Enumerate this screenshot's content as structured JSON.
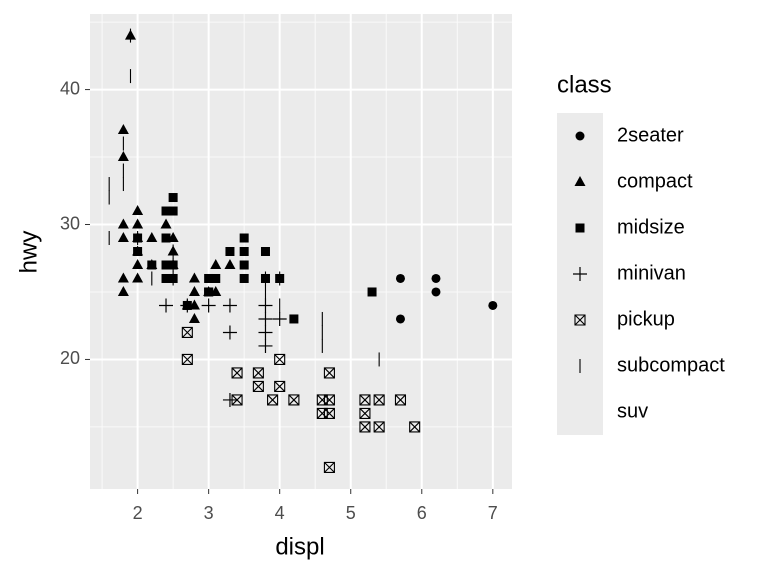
{
  "chart_data": {
    "type": "scatter",
    "x_label": "displ",
    "y_label": "hwy",
    "legend_title": "class",
    "xlim": [
      1.33,
      7.27
    ],
    "ylim": [
      10.4,
      45.6
    ],
    "xticks": [
      2,
      3,
      4,
      5,
      6,
      7
    ],
    "yticks": [
      20,
      30,
      40
    ],
    "grid": true,
    "legend": "right",
    "series": [
      {
        "name": "2seater",
        "shape": "circle",
        "color": "#000000",
        "x": [
          5.7,
          5.7,
          6.2,
          6.2,
          7.0
        ],
        "values": [
          26,
          23,
          26,
          25,
          24
        ]
      },
      {
        "name": "compact",
        "shape": "triangle",
        "color": "#000000",
        "x": [
          1.8,
          1.8,
          2.0,
          2.0,
          2.8,
          2.8,
          3.1,
          1.8,
          1.8,
          2.0,
          2.0,
          2.8,
          3.1,
          3.0,
          1.8,
          1.8,
          2.0,
          2.2,
          2.4,
          2.5,
          2.5,
          2.2,
          2.5,
          2.7,
          2.8,
          1.9,
          3.3,
          2.0
        ],
        "values": [
          29,
          26,
          31,
          30,
          26,
          24,
          27,
          25,
          37,
          28,
          27,
          25,
          25,
          25,
          35,
          30,
          29,
          27,
          30,
          29,
          28,
          29,
          27,
          24,
          23,
          44,
          27,
          26
        ]
      },
      {
        "name": "midsize",
        "shape": "square",
        "color": "#000000",
        "x": [
          2.4,
          2.5,
          3.0,
          3.3,
          3.5,
          3.5,
          3.8,
          4.0,
          2.2,
          2.4,
          2.4,
          2.5,
          3.5,
          2.5,
          3.0,
          3.1,
          3.5,
          3.8,
          5.3,
          4.2,
          2.0,
          2.4,
          2.7,
          2.0,
          2.5,
          3.0
        ],
        "values": [
          27,
          26,
          26,
          28,
          29,
          28,
          26,
          26,
          27,
          29,
          31,
          32,
          26,
          31,
          25,
          26,
          27,
          28,
          25,
          23,
          28,
          26,
          24,
          29,
          27,
          25
        ]
      },
      {
        "name": "minivan",
        "shape": "plus",
        "color": "#000000",
        "x": [
          2.4,
          3.0,
          3.3,
          3.3,
          3.8,
          3.8,
          3.8,
          4.0,
          3.3,
          3.8,
          2.7
        ],
        "values": [
          24,
          24,
          22,
          24,
          21,
          22,
          23,
          23,
          17,
          24,
          24
        ]
      },
      {
        "name": "pickup",
        "shape": "boxcross",
        "color": "#000000",
        "x": [
          2.7,
          2.7,
          3.4,
          3.4,
          3.7,
          3.7,
          3.9,
          4.0,
          4.0,
          4.2,
          4.6,
          4.6,
          4.7,
          4.7,
          4.7,
          4.7,
          5.2,
          5.2,
          5.2,
          5.4,
          5.4,
          5.7,
          5.9
        ],
        "values": [
          20,
          22,
          19,
          17,
          18,
          19,
          17,
          18,
          20,
          17,
          17,
          16,
          12,
          16,
          17,
          19,
          17,
          16,
          15,
          17,
          15,
          17,
          15
        ]
      },
      {
        "name": "subcompact",
        "shape": "asterisk",
        "color": "#000000",
        "x": [
          1.6,
          1.6,
          1.6,
          1.8,
          1.8,
          1.8,
          1.9,
          1.9,
          2.0,
          2.2,
          2.5,
          2.5,
          3.8,
          3.8,
          4.0,
          4.0,
          4.6,
          4.6,
          4.6,
          5.4,
          2.5
        ],
        "values": [
          33,
          32,
          29,
          34,
          36,
          33,
          44,
          41,
          29,
          26,
          28,
          26,
          25,
          26,
          26,
          24,
          21,
          22,
          23,
          20,
          27
        ]
      },
      {
        "name": "suv",
        "shape": "none",
        "color": "#000000",
        "x": [],
        "values": []
      }
    ]
  }
}
